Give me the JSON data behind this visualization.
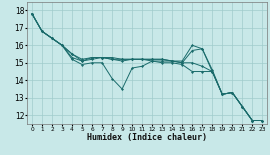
{
  "xlabel": "Humidex (Indice chaleur)",
  "xlim": [
    -0.5,
    23.5
  ],
  "ylim": [
    11.5,
    18.5
  ],
  "yticks": [
    12,
    13,
    14,
    15,
    16,
    17,
    18
  ],
  "xticks": [
    0,
    1,
    2,
    3,
    4,
    5,
    6,
    7,
    8,
    9,
    10,
    11,
    12,
    13,
    14,
    15,
    16,
    17,
    18,
    19,
    20,
    21,
    22,
    23
  ],
  "bg_color": "#c8e8e8",
  "line_color": "#1a6b6b",
  "grid_color": "#a0cccc",
  "series": [
    {
      "x": [
        0,
        1,
        2,
        3,
        4,
        5,
        6,
        7,
        8,
        9,
        10,
        11,
        12,
        13,
        14,
        15,
        16,
        17,
        18,
        19,
        20,
        21,
        22,
        23
      ],
      "y": [
        17.8,
        16.8,
        16.4,
        16.0,
        15.2,
        14.9,
        15.0,
        15.0,
        14.1,
        13.5,
        14.7,
        14.8,
        15.1,
        15.1,
        15.1,
        15.0,
        15.7,
        15.8,
        14.5,
        13.2,
        13.3,
        12.5,
        11.7,
        11.7
      ]
    },
    {
      "x": [
        0,
        1,
        2,
        3,
        4,
        5,
        6,
        7,
        8,
        9,
        10,
        11,
        12,
        13,
        14,
        15,
        16,
        17,
        18,
        19,
        20,
        21,
        22,
        23
      ],
      "y": [
        17.8,
        16.8,
        16.4,
        16.0,
        15.3,
        15.1,
        15.2,
        15.3,
        15.2,
        15.1,
        15.2,
        15.2,
        15.2,
        15.2,
        15.1,
        15.1,
        16.0,
        15.8,
        14.6,
        13.2,
        13.3,
        12.5,
        11.7,
        11.7
      ]
    },
    {
      "x": [
        0,
        1,
        2,
        3,
        4,
        5,
        6,
        7,
        8,
        9,
        10,
        11,
        12,
        13,
        14,
        15,
        16,
        17,
        18,
        19,
        20,
        21,
        22,
        23
      ],
      "y": [
        17.8,
        16.8,
        16.4,
        16.0,
        15.5,
        15.1,
        15.3,
        15.3,
        15.2,
        15.2,
        15.2,
        15.2,
        15.2,
        15.2,
        15.1,
        15.0,
        15.0,
        14.8,
        14.5,
        13.2,
        13.3,
        12.5,
        11.7,
        11.7
      ]
    },
    {
      "x": [
        0,
        1,
        2,
        3,
        4,
        5,
        6,
        7,
        8,
        9,
        10,
        11,
        12,
        13,
        14,
        15,
        16,
        17,
        18,
        19,
        20,
        21,
        22,
        23
      ],
      "y": [
        17.8,
        16.8,
        16.4,
        16.0,
        15.5,
        15.2,
        15.3,
        15.3,
        15.3,
        15.2,
        15.2,
        15.2,
        15.1,
        15.0,
        15.0,
        14.9,
        14.5,
        14.5,
        14.5,
        13.2,
        13.3,
        12.5,
        11.7,
        11.7
      ]
    }
  ]
}
